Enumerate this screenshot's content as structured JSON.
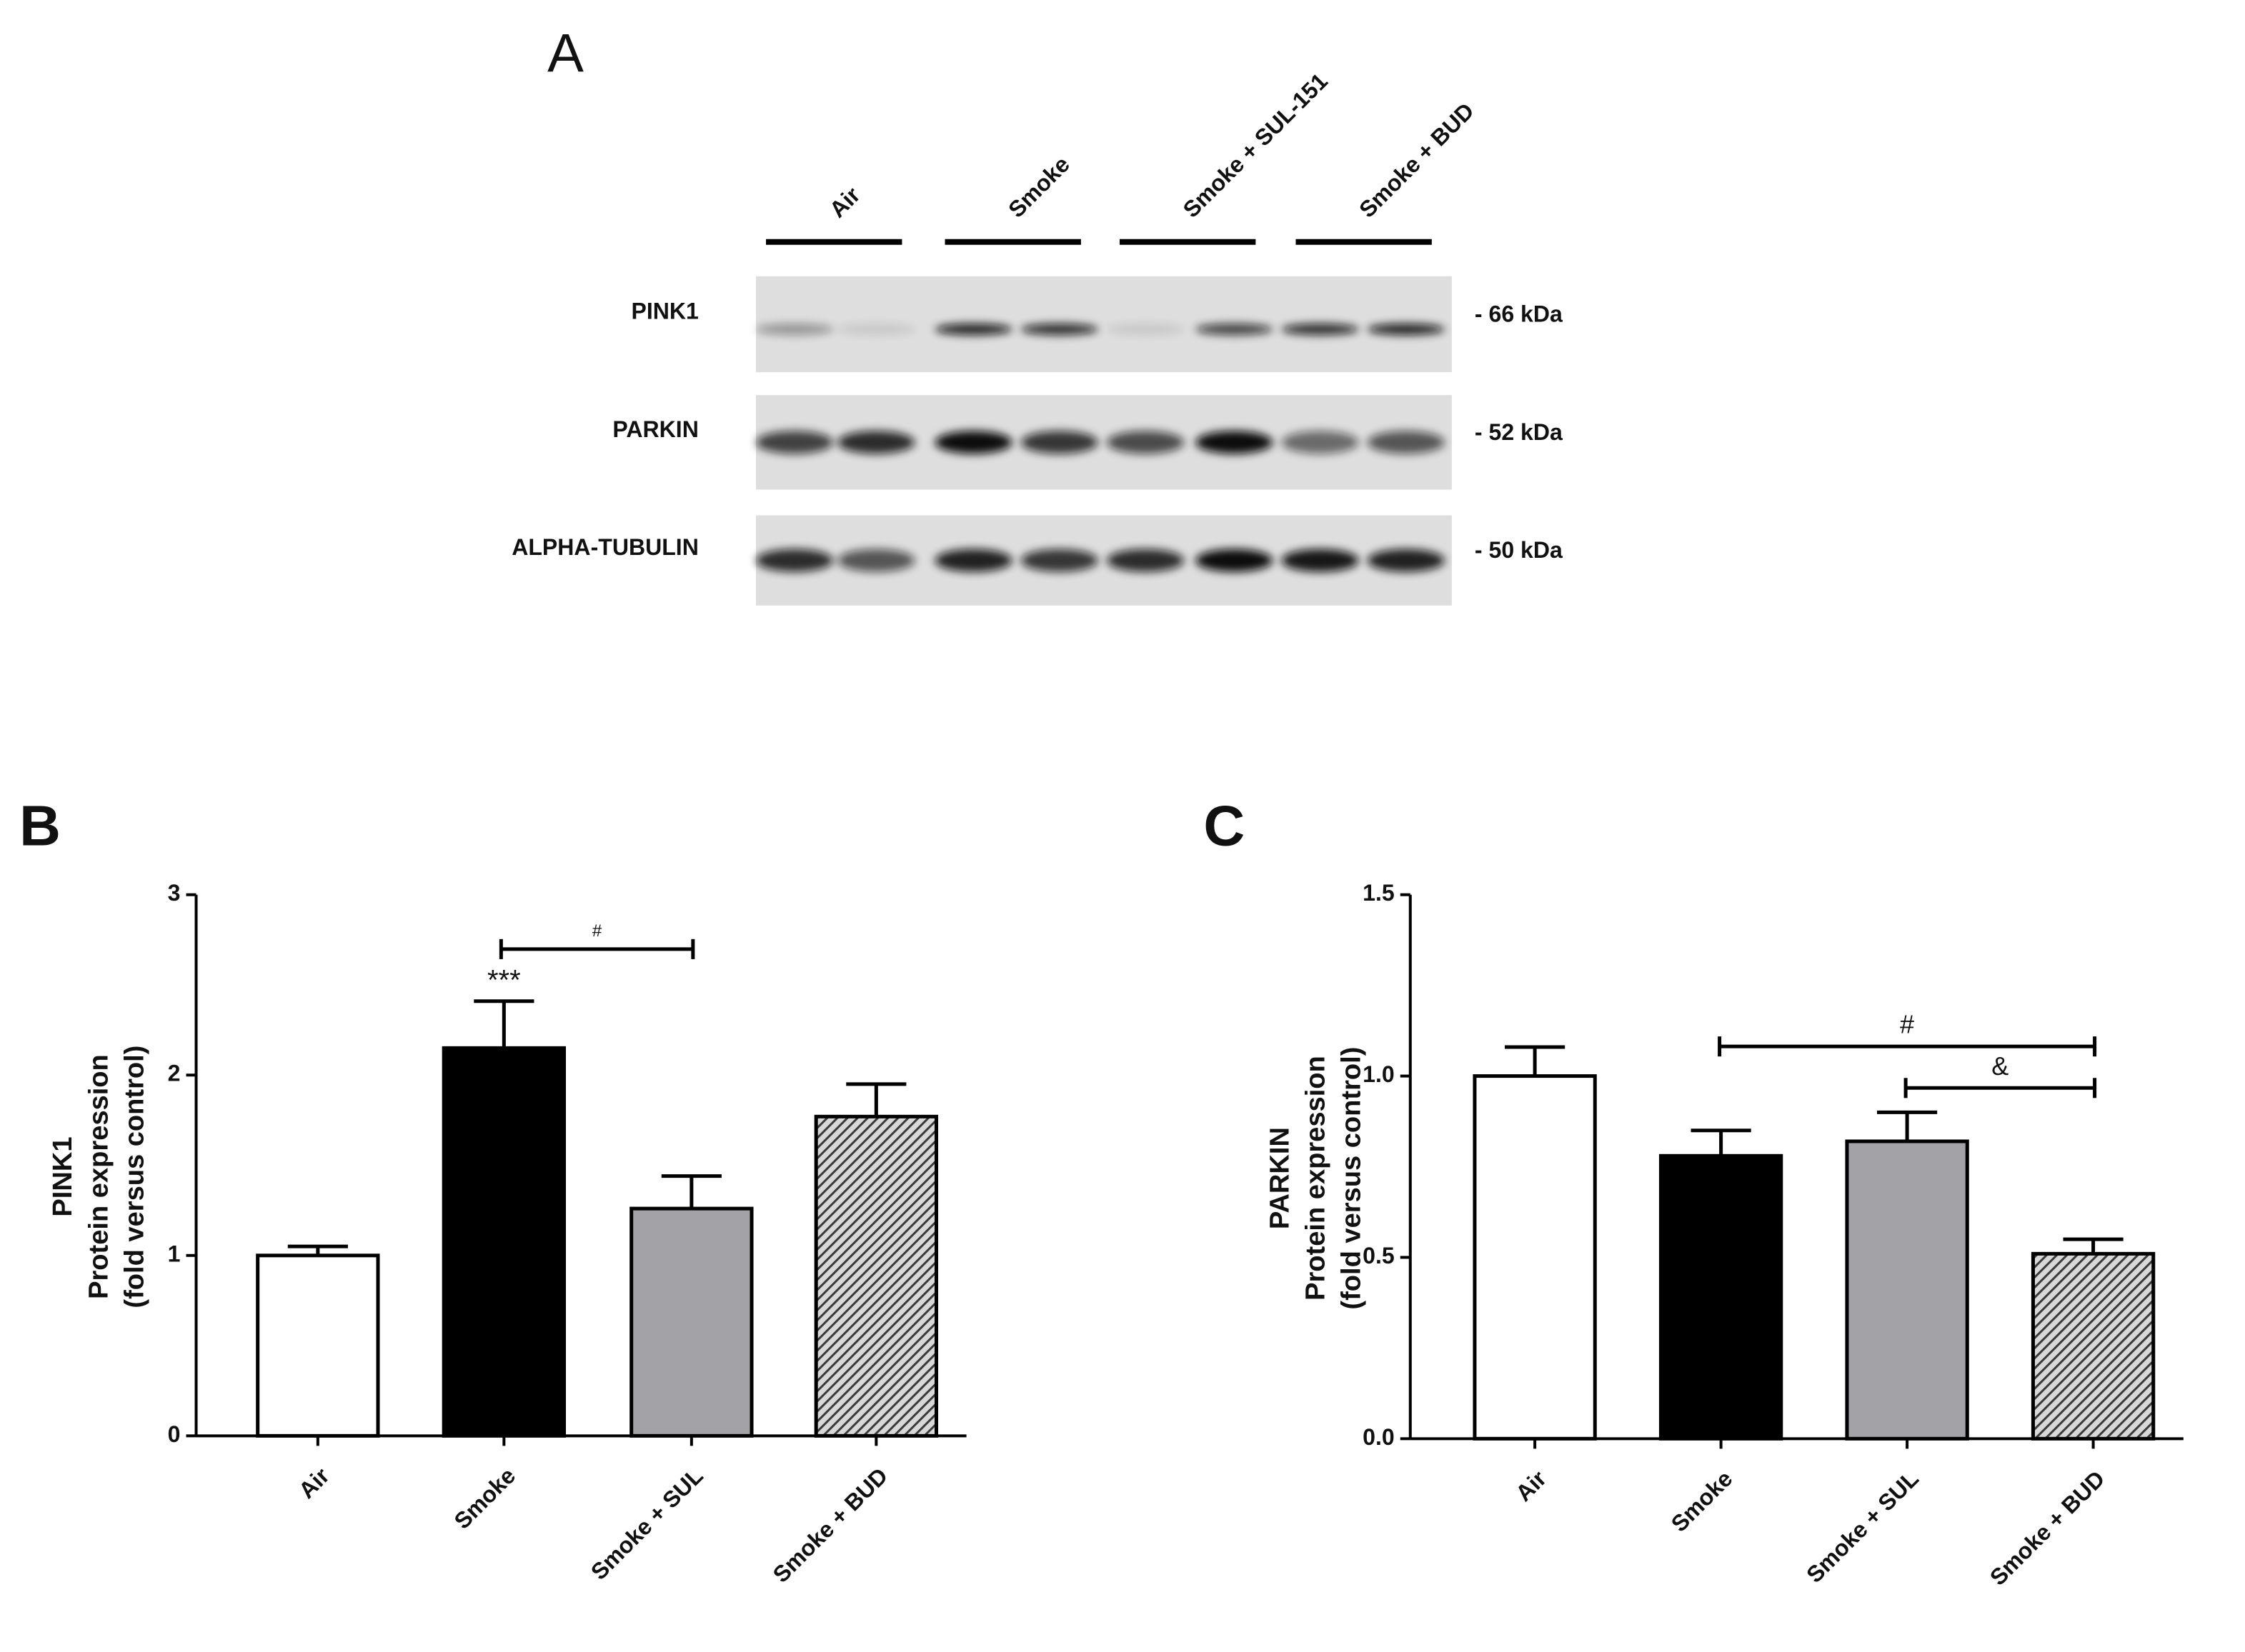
{
  "blot": {
    "panel": "A",
    "lanes": [
      "Air",
      "Smoke",
      "Smoke + SUL-151",
      "Smoke + BUD"
    ],
    "rows": [
      {
        "label": "PINK1",
        "size": "- 66 kDa"
      },
      {
        "label": "PARKIN",
        "size": "- 52 kDa"
      },
      {
        "label": "ALPHA-TUBULIN",
        "size": "- 50 kDa"
      }
    ]
  },
  "chart_data": [
    {
      "type": "bar",
      "panel": "B",
      "ylabel": [
        "PINK1",
        "Protein expression",
        "(fold versus control)"
      ],
      "categories": [
        "Air",
        "Smoke",
        "Smoke + SUL",
        "Smoke + BUD"
      ],
      "values": [
        1.0,
        2.15,
        1.26,
        1.77
      ],
      "errors": [
        0.05,
        0.26,
        0.18,
        0.18
      ],
      "colors": [
        "#ffffff",
        "#000000",
        "#a3a3a7",
        "#4a4a4a"
      ],
      "hatched": [
        false,
        false,
        false,
        true
      ],
      "ylim": [
        0,
        3
      ],
      "yticks": [
        0,
        1,
        2,
        3
      ],
      "annotations": [
        "***",
        "#"
      ]
    },
    {
      "type": "bar",
      "panel": "C",
      "ylabel": [
        "PARKIN",
        "Protein expression",
        "(fold versus control)"
      ],
      "categories": [
        "Air",
        "Smoke",
        "Smoke + SUL",
        "Smoke + BUD"
      ],
      "values": [
        1.0,
        0.78,
        0.82,
        0.51
      ],
      "errors": [
        0.08,
        0.07,
        0.08,
        0.04
      ],
      "colors": [
        "#ffffff",
        "#000000",
        "#a3a3a7",
        "#4a4a4a"
      ],
      "hatched": [
        false,
        false,
        false,
        true
      ],
      "ylim": [
        0,
        1.5
      ],
      "yticks": [
        {
          "value": 0,
          "label": "0.0"
        },
        0.5,
        {
          "value": 1,
          "label": "1.0"
        },
        1.5
      ],
      "annotations": [
        "#",
        "&"
      ]
    }
  ]
}
